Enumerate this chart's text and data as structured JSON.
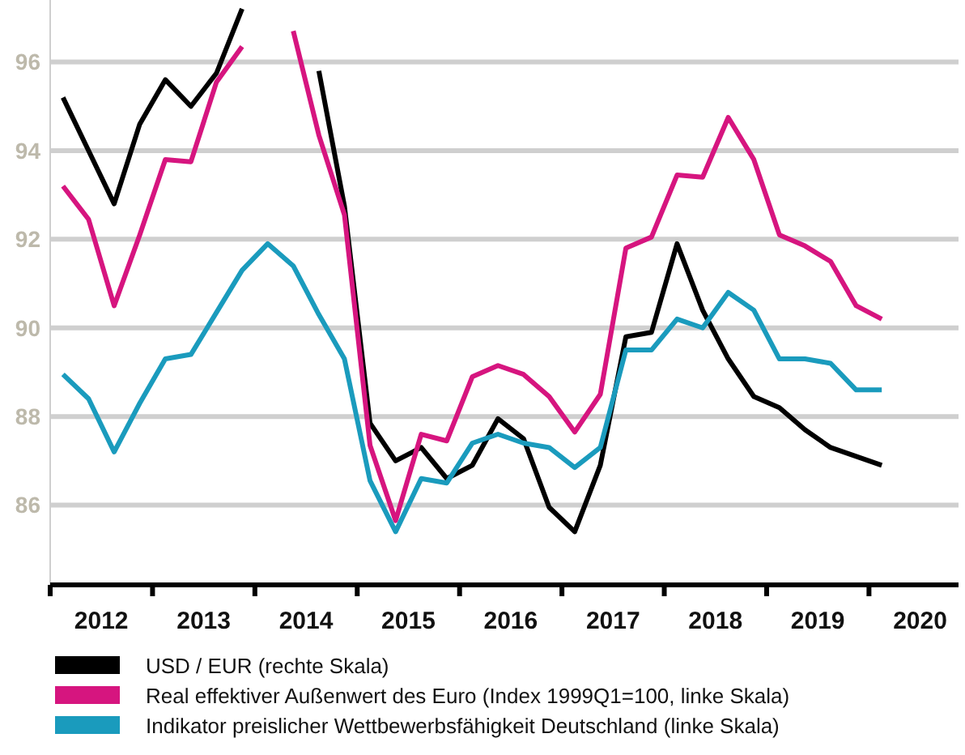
{
  "chart_data": {
    "type": "line",
    "x": [
      2012.125,
      2012.375,
      2012.625,
      2012.875,
      2013.125,
      2013.375,
      2013.625,
      2013.875,
      2014.125,
      2014.375,
      2014.625,
      2014.875,
      2015.125,
      2015.375,
      2015.625,
      2015.875,
      2016.125,
      2016.375,
      2016.625,
      2016.875,
      2017.125,
      2017.375,
      2017.625,
      2017.875,
      2018.125,
      2018.375,
      2018.625,
      2018.875,
      2019.125,
      2019.375,
      2019.625,
      2019.875,
      2020.125
    ],
    "series": [
      {
        "name": "USD / EUR (rechte Skala)",
        "color": "#000000",
        "values": [
          95.2,
          94.0,
          92.8,
          94.6,
          95.6,
          95.0,
          95.75,
          97.2,
          null,
          null,
          95.8,
          92.75,
          87.85,
          87.0,
          87.3,
          86.6,
          86.9,
          87.95,
          87.5,
          85.95,
          85.4,
          86.9,
          89.8,
          89.9,
          91.9,
          90.4,
          89.3,
          88.45,
          88.2,
          87.7,
          87.3,
          87.1,
          86.9
        ]
      },
      {
        "name": "Real effektiver Außenwert des Euro (Index 1999Q1=100, linke Skala)",
        "color": "#d6157f",
        "values": [
          93.2,
          92.45,
          90.5,
          92.1,
          93.8,
          93.75,
          95.55,
          96.35,
          null,
          96.7,
          94.35,
          92.55,
          87.35,
          85.65,
          87.6,
          87.45,
          88.9,
          89.15,
          88.95,
          88.45,
          87.65,
          88.5,
          91.8,
          92.05,
          93.45,
          93.4,
          94.75,
          93.8,
          92.1,
          91.85,
          91.5,
          90.5,
          90.2
        ]
      },
      {
        "name": "Indikator preislicher Wettbewerbsfähigkeit Deutschland (linke Skala)",
        "color": "#1a9bbd",
        "values": [
          88.95,
          88.4,
          87.2,
          88.3,
          89.3,
          89.4,
          90.35,
          91.3,
          91.9,
          91.4,
          90.3,
          89.3,
          86.55,
          85.4,
          86.6,
          86.5,
          87.4,
          87.6,
          87.4,
          87.3,
          86.85,
          87.3,
          89.5,
          89.5,
          90.2,
          90.0,
          90.8,
          90.4,
          89.3,
          89.3,
          89.2,
          88.6,
          88.6
        ]
      }
    ],
    "xlim": [
      2012,
      2020.875
    ],
    "xticks": [
      {
        "value": 2012,
        "label": null
      },
      {
        "value": 2012.5,
        "label": "2012"
      },
      {
        "value": 2013,
        "label": null
      },
      {
        "value": 2013.5,
        "label": "2013"
      },
      {
        "value": 2014,
        "label": null
      },
      {
        "value": 2014.5,
        "label": "2014"
      },
      {
        "value": 2015,
        "label": null
      },
      {
        "value": 2015.5,
        "label": "2015"
      },
      {
        "value": 2016,
        "label": null
      },
      {
        "value": 2016.5,
        "label": "2016"
      },
      {
        "value": 2017,
        "label": null
      },
      {
        "value": 2017.5,
        "label": "2017"
      },
      {
        "value": 2018,
        "label": null
      },
      {
        "value": 2018.5,
        "label": "2018"
      },
      {
        "value": 2019,
        "label": null
      },
      {
        "value": 2019.5,
        "label": "2019"
      },
      {
        "value": 2020,
        "label": null
      },
      {
        "value": 2020.5,
        "label": "2020"
      }
    ],
    "ylim": [
      84.2,
      97.4
    ],
    "yticks": [
      86,
      88,
      90,
      92,
      94,
      96
    ],
    "grid": "y",
    "legend": "bottom",
    "marker": "none",
    "line_style": "solid"
  }
}
